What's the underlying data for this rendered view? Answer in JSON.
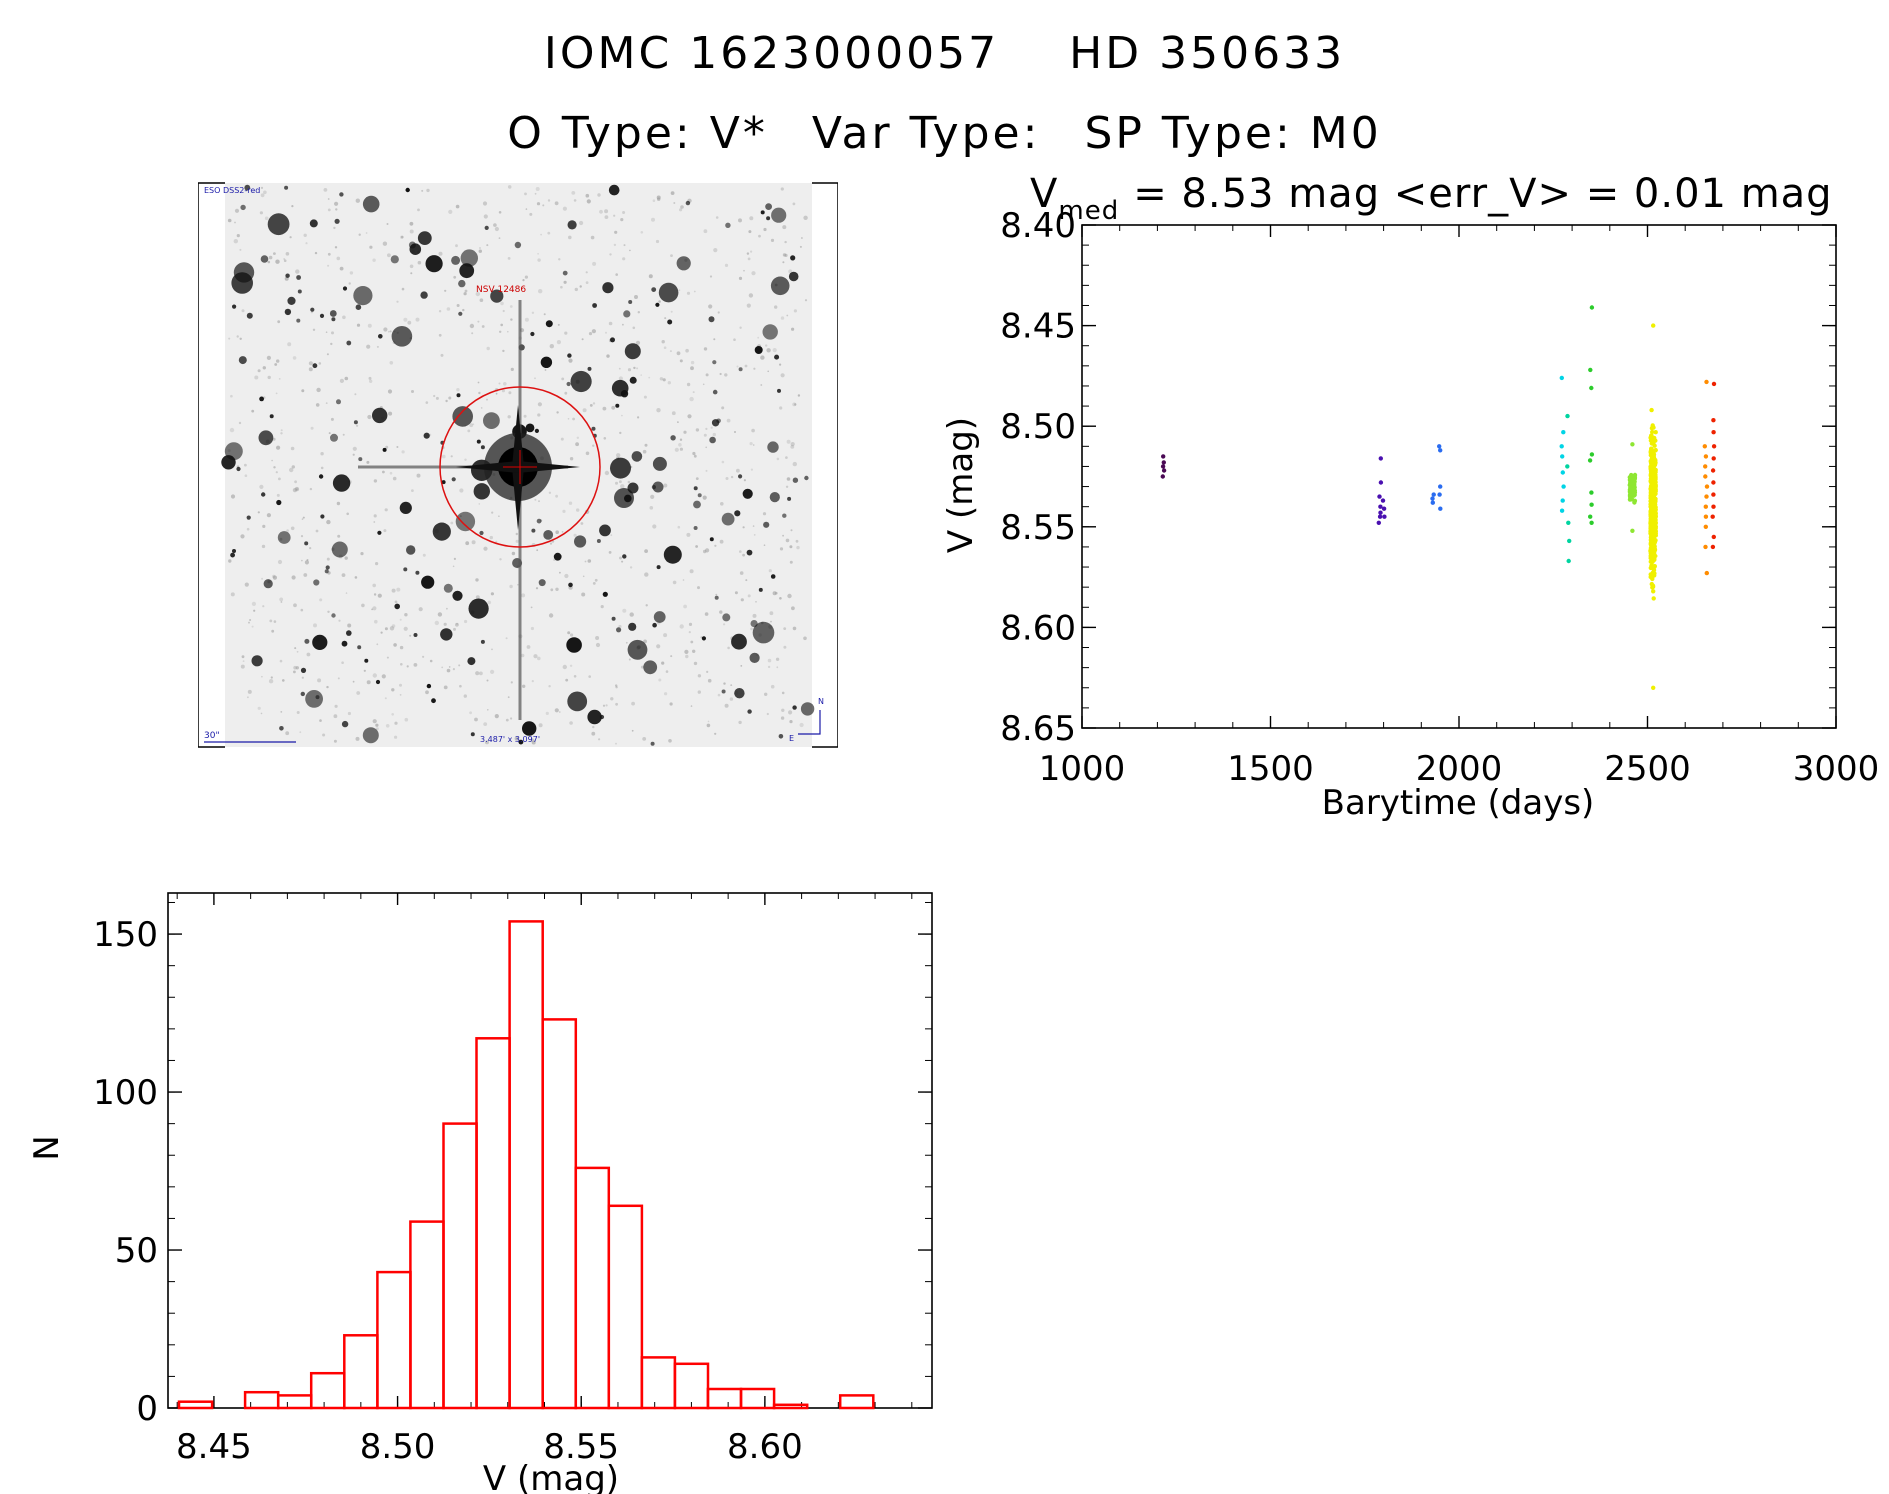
{
  "header": {
    "id_label": "IOMC 1623000057",
    "hd_label": "HD 350633",
    "otype": "O Type: V*",
    "vartype": "Var Type:",
    "sptype": "SP Type: M0"
  },
  "finder": {
    "survey_label": "ESO DSS2-red",
    "object_label": "NSV 12486",
    "scale_label": "30\"",
    "fov_label": "3.487' x 3.097'",
    "north_label": "N",
    "east_label": "E"
  },
  "colors": {
    "histogram": "#ff0000",
    "finder_circle": "#dd1111",
    "finder_text": "#cc0000",
    "finder_meta": "#1a1aa8"
  },
  "chart_data": [
    {
      "type": "scatter",
      "title_prefix": "V",
      "title_sub": "med",
      "title_rest": "= 8.53 mag <err_V> = 0.01 mag",
      "xlabel": "Barytime (days)",
      "ylabel": "V (mag)",
      "xlim": [
        1000,
        3000
      ],
      "ylim": [
        8.4,
        8.65
      ],
      "y_inverted": true,
      "xticks": [
        "1000",
        "1500",
        "2000",
        "2500",
        "3000"
      ],
      "yticks": [
        "8.40",
        "8.45",
        "8.50",
        "8.55",
        "8.60",
        "8.65"
      ],
      "groups": [
        {
          "t": 1215,
          "color": "#4b0a55",
          "values": [
            8.515,
            8.518,
            8.52,
            8.522,
            8.525
          ]
        },
        {
          "t": 1790,
          "color": "#4a10b0",
          "values": [
            8.516,
            8.528,
            8.535,
            8.54,
            8.543,
            8.545,
            8.548
          ]
        },
        {
          "t": 1800,
          "color": "#4a10b0",
          "values": [
            8.537,
            8.541,
            8.545
          ]
        },
        {
          "t": 1930,
          "color": "#2a6cf0",
          "values": [
            8.534,
            8.536,
            8.538
          ]
        },
        {
          "t": 1950,
          "color": "#2a6cf0",
          "values": [
            8.51,
            8.512,
            8.53,
            8.534,
            8.541
          ]
        },
        {
          "t": 2275,
          "color": "#00d4e6",
          "values": [
            8.476,
            8.503,
            8.51,
            8.515,
            8.523,
            8.53,
            8.537,
            8.542
          ]
        },
        {
          "t": 2290,
          "color": "#00d4a0",
          "values": [
            8.495,
            8.52,
            8.548,
            8.557,
            8.567
          ]
        },
        {
          "t": 2350,
          "color": "#2ccc2c",
          "values": [
            8.441,
            8.472,
            8.481,
            8.514,
            8.517,
            8.533,
            8.539,
            8.545,
            8.548
          ]
        },
        {
          "t": 2460,
          "color": "#8ee632",
          "dense": true,
          "min": 8.509,
          "max": 8.552,
          "n": 90
        },
        {
          "t": 2515,
          "color": "#f0f000",
          "dense": true,
          "min": 8.45,
          "max": 8.63,
          "n": 650
        },
        {
          "t": 2655,
          "color": "#ff8c00",
          "values": [
            8.478,
            8.51,
            8.515,
            8.52,
            8.525,
            8.53,
            8.535,
            8.54,
            8.545,
            8.55,
            8.56,
            8.573
          ]
        },
        {
          "t": 2675,
          "color": "#ee2200",
          "values": [
            8.479,
            8.497,
            8.503,
            8.51,
            8.516,
            8.522,
            8.528,
            8.534,
            8.54,
            8.545,
            8.555,
            8.56
          ]
        }
      ]
    },
    {
      "type": "bar",
      "subtype": "histogram",
      "xlabel": "V (mag)",
      "ylabel": "N",
      "xlim": [
        8.4375,
        8.6455
      ],
      "ylim": [
        0,
        163
      ],
      "xticks": [
        "8.45",
        "8.50",
        "8.55",
        "8.60"
      ],
      "yticks": [
        "0",
        "50",
        "100",
        "150"
      ],
      "bin_width": 0.009,
      "bin_starts": [
        8.4405,
        8.4585,
        8.4675,
        8.4765,
        8.4855,
        8.4945,
        8.5035,
        8.5125,
        8.5215,
        8.5305,
        8.5395,
        8.5485,
        8.5575,
        8.5665,
        8.5755,
        8.5845,
        8.5935,
        8.6025,
        8.6205
      ],
      "values": [
        2,
        5,
        4,
        11,
        23,
        43,
        59,
        90,
        117,
        154,
        123,
        76,
        64,
        16,
        14,
        6,
        6,
        1,
        4
      ]
    }
  ]
}
